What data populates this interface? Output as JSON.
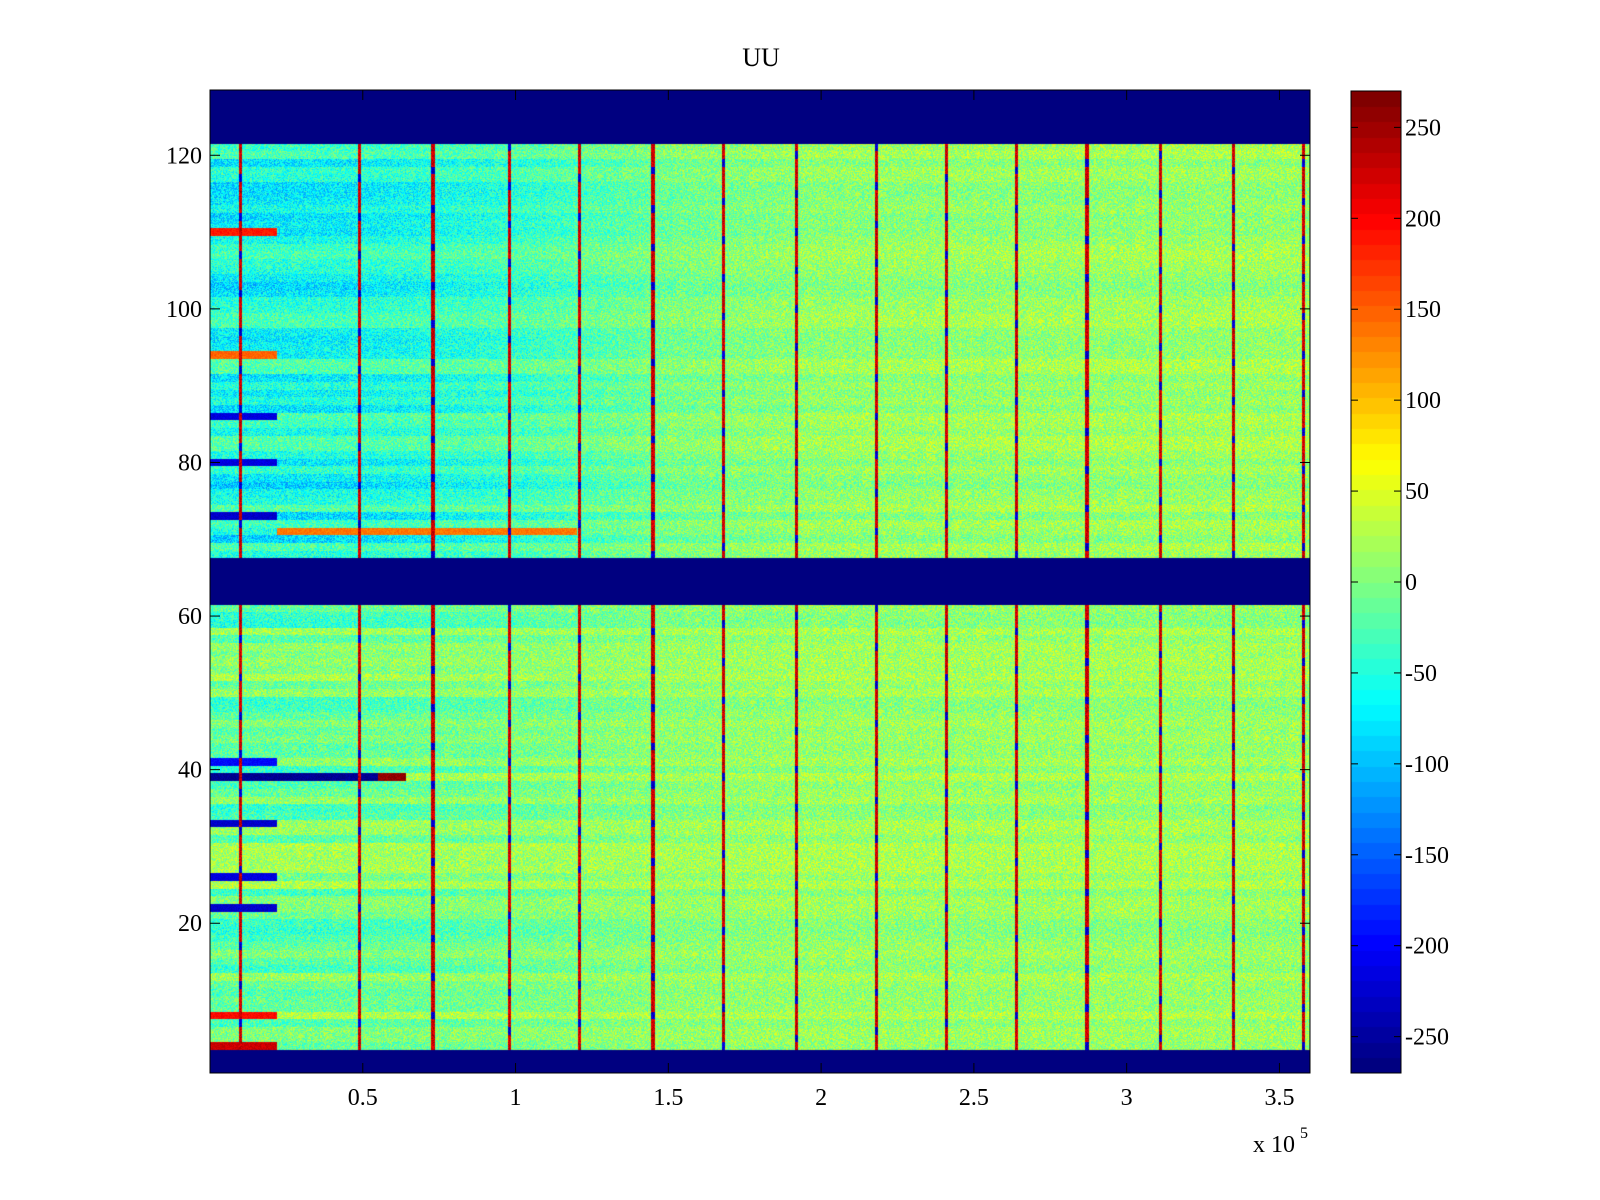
{
  "chart_data": {
    "type": "heatmap",
    "title": "UU",
    "xlabel": "",
    "ylabel": "",
    "x_multiplier_label": {
      "base": "x 10",
      "exponent": "5"
    },
    "xlim": [
      0.0,
      3.6
    ],
    "ylim": [
      0.5,
      128.5
    ],
    "xticks": [
      0.5,
      1,
      1.5,
      2,
      2.5,
      3,
      3.5
    ],
    "xtick_labels": [
      "0.5",
      "1",
      "1.5",
      "2",
      "2.5",
      "3",
      "3.5"
    ],
    "yticks": [
      20,
      40,
      60,
      80,
      100,
      120
    ],
    "ytick_labels": [
      "20",
      "40",
      "60",
      "80",
      "100",
      "120"
    ],
    "colormap": "jet",
    "clim": [
      -270,
      270
    ],
    "colorbar_ticks": [
      250,
      200,
      150,
      100,
      50,
      0,
      -50,
      -100,
      -150,
      -200,
      -250
    ],
    "colorbar_tick_labels": [
      "250",
      "200",
      "150",
      "100",
      "50",
      "0",
      "-50",
      "-100",
      "-150",
      "-200",
      "-250"
    ],
    "empty_row_bands": [
      [
        0.5,
        3.5
      ],
      [
        61.5,
        67.5
      ],
      [
        121.5,
        128.5
      ]
    ],
    "fill_value": -270,
    "periodic_spike_x_1e5": [
      0.1,
      0.49,
      0.73,
      0.98,
      1.21,
      1.45,
      1.68,
      1.92,
      2.18,
      2.41,
      2.64,
      2.87,
      3.11,
      3.35,
      3.58
    ],
    "background_trend": {
      "x_1e5": [
        0,
        0.5,
        1.0,
        1.5,
        2.0,
        3.6
      ],
      "mean_upper_rows": [
        -60,
        -55,
        -35,
        -5,
        10,
        15
      ],
      "mean_lower_rows": [
        -10,
        -5,
        0,
        10,
        15,
        15
      ]
    },
    "row_features": [
      {
        "row": 39,
        "x_range_1e5": [
          0.0,
          0.62
        ],
        "value": -260
      },
      {
        "row": 39,
        "x_range_1e5": [
          0.55,
          0.64
        ],
        "value": 260
      },
      {
        "row": 33,
        "x_range_1e5": [
          0.0,
          0.22
        ],
        "value": -230
      },
      {
        "row": 22,
        "x_range_1e5": [
          0.0,
          0.22
        ],
        "value": -230
      },
      {
        "row": 26,
        "x_range_1e5": [
          0.0,
          0.22
        ],
        "value": -220
      },
      {
        "row": 4,
        "x_range_1e5": [
          0.0,
          0.22
        ],
        "value": 230
      },
      {
        "row": 8,
        "x_range_1e5": [
          0.0,
          0.22
        ],
        "value": 200
      },
      {
        "row": 41,
        "x_range_1e5": [
          0.0,
          0.22
        ],
        "value": -200
      },
      {
        "row": 110,
        "x_range_1e5": [
          0.0,
          0.22
        ],
        "value": 190
      },
      {
        "row": 94,
        "x_range_1e5": [
          0.0,
          0.22
        ],
        "value": 150
      },
      {
        "row": 86,
        "x_range_1e5": [
          0.0,
          0.22
        ],
        "value": -220
      },
      {
        "row": 80,
        "x_range_1e5": [
          0.0,
          0.22
        ],
        "value": -220
      },
      {
        "row": 73,
        "x_range_1e5": [
          0.0,
          0.22
        ],
        "value": -230
      },
      {
        "row": 71,
        "x_range_1e5": [
          0.22,
          1.2
        ],
        "value": 140
      }
    ]
  }
}
